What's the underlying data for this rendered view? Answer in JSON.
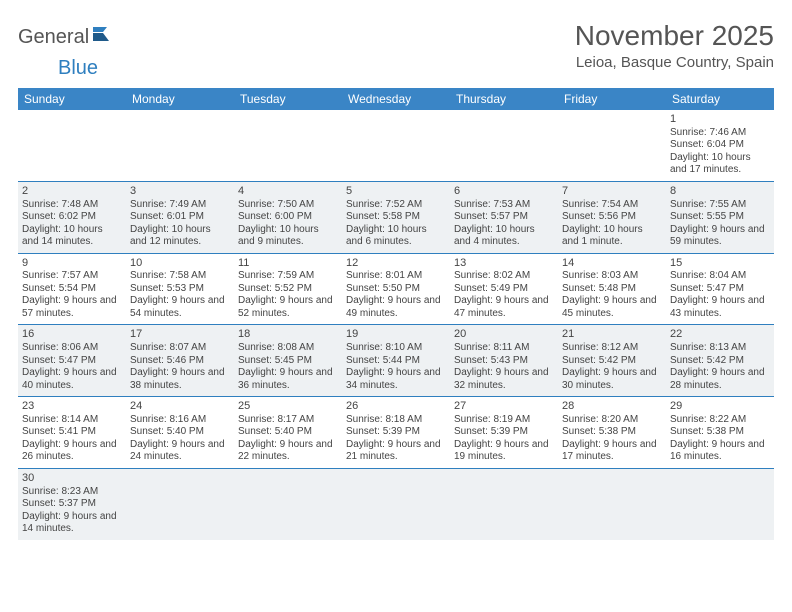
{
  "logo": {
    "part1": "General",
    "part2": "Blue"
  },
  "title": "November 2025",
  "location": "Leioa, Basque Country, Spain",
  "colors": {
    "header_bg": "#3a85c6",
    "header_text": "#ffffff",
    "divider": "#2f7fbf",
    "shaded_bg": "#eef1f3",
    "text": "#444444",
    "logo_gray": "#555555",
    "logo_blue": "#2f7fbf"
  },
  "fonts": {
    "title_size_pt": 21,
    "location_size_pt": 11,
    "dow_size_pt": 9,
    "daynum_size_pt": 8,
    "body_size_pt": 7.5
  },
  "days_of_week": [
    "Sunday",
    "Monday",
    "Tuesday",
    "Wednesday",
    "Thursday",
    "Friday",
    "Saturday"
  ],
  "weeks": [
    [
      null,
      null,
      null,
      null,
      null,
      null,
      {
        "n": "1",
        "sr": "7:46 AM",
        "ss": "6:04 PM",
        "dl": "10 hours and 17 minutes."
      }
    ],
    [
      {
        "n": "2",
        "sr": "7:48 AM",
        "ss": "6:02 PM",
        "dl": "10 hours and 14 minutes."
      },
      {
        "n": "3",
        "sr": "7:49 AM",
        "ss": "6:01 PM",
        "dl": "10 hours and 12 minutes."
      },
      {
        "n": "4",
        "sr": "7:50 AM",
        "ss": "6:00 PM",
        "dl": "10 hours and 9 minutes."
      },
      {
        "n": "5",
        "sr": "7:52 AM",
        "ss": "5:58 PM",
        "dl": "10 hours and 6 minutes."
      },
      {
        "n": "6",
        "sr": "7:53 AM",
        "ss": "5:57 PM",
        "dl": "10 hours and 4 minutes."
      },
      {
        "n": "7",
        "sr": "7:54 AM",
        "ss": "5:56 PM",
        "dl": "10 hours and 1 minute."
      },
      {
        "n": "8",
        "sr": "7:55 AM",
        "ss": "5:55 PM",
        "dl": "9 hours and 59 minutes."
      }
    ],
    [
      {
        "n": "9",
        "sr": "7:57 AM",
        "ss": "5:54 PM",
        "dl": "9 hours and 57 minutes."
      },
      {
        "n": "10",
        "sr": "7:58 AM",
        "ss": "5:53 PM",
        "dl": "9 hours and 54 minutes."
      },
      {
        "n": "11",
        "sr": "7:59 AM",
        "ss": "5:52 PM",
        "dl": "9 hours and 52 minutes."
      },
      {
        "n": "12",
        "sr": "8:01 AM",
        "ss": "5:50 PM",
        "dl": "9 hours and 49 minutes."
      },
      {
        "n": "13",
        "sr": "8:02 AM",
        "ss": "5:49 PM",
        "dl": "9 hours and 47 minutes."
      },
      {
        "n": "14",
        "sr": "8:03 AM",
        "ss": "5:48 PM",
        "dl": "9 hours and 45 minutes."
      },
      {
        "n": "15",
        "sr": "8:04 AM",
        "ss": "5:47 PM",
        "dl": "9 hours and 43 minutes."
      }
    ],
    [
      {
        "n": "16",
        "sr": "8:06 AM",
        "ss": "5:47 PM",
        "dl": "9 hours and 40 minutes."
      },
      {
        "n": "17",
        "sr": "8:07 AM",
        "ss": "5:46 PM",
        "dl": "9 hours and 38 minutes."
      },
      {
        "n": "18",
        "sr": "8:08 AM",
        "ss": "5:45 PM",
        "dl": "9 hours and 36 minutes."
      },
      {
        "n": "19",
        "sr": "8:10 AM",
        "ss": "5:44 PM",
        "dl": "9 hours and 34 minutes."
      },
      {
        "n": "20",
        "sr": "8:11 AM",
        "ss": "5:43 PM",
        "dl": "9 hours and 32 minutes."
      },
      {
        "n": "21",
        "sr": "8:12 AM",
        "ss": "5:42 PM",
        "dl": "9 hours and 30 minutes."
      },
      {
        "n": "22",
        "sr": "8:13 AM",
        "ss": "5:42 PM",
        "dl": "9 hours and 28 minutes."
      }
    ],
    [
      {
        "n": "23",
        "sr": "8:14 AM",
        "ss": "5:41 PM",
        "dl": "9 hours and 26 minutes."
      },
      {
        "n": "24",
        "sr": "8:16 AM",
        "ss": "5:40 PM",
        "dl": "9 hours and 24 minutes."
      },
      {
        "n": "25",
        "sr": "8:17 AM",
        "ss": "5:40 PM",
        "dl": "9 hours and 22 minutes."
      },
      {
        "n": "26",
        "sr": "8:18 AM",
        "ss": "5:39 PM",
        "dl": "9 hours and 21 minutes."
      },
      {
        "n": "27",
        "sr": "8:19 AM",
        "ss": "5:39 PM",
        "dl": "9 hours and 19 minutes."
      },
      {
        "n": "28",
        "sr": "8:20 AM",
        "ss": "5:38 PM",
        "dl": "9 hours and 17 minutes."
      },
      {
        "n": "29",
        "sr": "8:22 AM",
        "ss": "5:38 PM",
        "dl": "9 hours and 16 minutes."
      }
    ],
    [
      {
        "n": "30",
        "sr": "8:23 AM",
        "ss": "5:37 PM",
        "dl": "9 hours and 14 minutes."
      },
      null,
      null,
      null,
      null,
      null,
      null
    ]
  ],
  "labels": {
    "sunrise_prefix": "Sunrise: ",
    "sunset_prefix": "Sunset: ",
    "daylight_prefix": "Daylight: "
  }
}
